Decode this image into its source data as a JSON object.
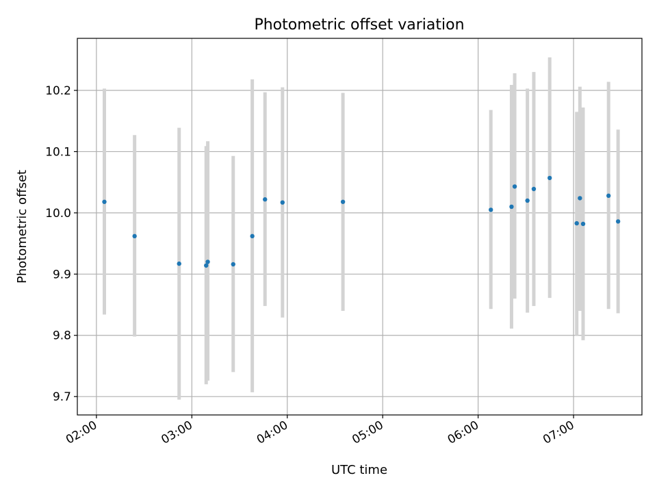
{
  "chart_data": {
    "type": "scatter",
    "title": "Photometric offset variation",
    "xlabel": "UTC time",
    "ylabel": "Photometric offset",
    "xlim": [
      "01:48",
      "07:43"
    ],
    "ylim": [
      9.67,
      10.285
    ],
    "grid": true,
    "x_ticks": [
      "02:00",
      "03:00",
      "04:00",
      "05:00",
      "06:00",
      "07:00"
    ],
    "y_ticks": [
      9.7,
      9.8,
      9.9,
      10.0,
      10.1,
      10.2
    ],
    "y_tick_labels": [
      "9.7",
      "9.8",
      "9.9",
      "10.0",
      "10.1",
      "10.2"
    ],
    "point_color": "#1f77b4",
    "errorbar_color": "#d3d3d3",
    "series": [
      {
        "x": [
          "02:05",
          "02:24",
          "02:52",
          "03:09",
          "03:10",
          "03:26",
          "03:38",
          "03:46",
          "03:57",
          "04:35",
          "06:08",
          "06:21",
          "06:23",
          "06:31",
          "06:35",
          "06:45",
          "07:02",
          "07:04",
          "07:06",
          "07:22",
          "07:28"
        ],
        "y": [
          10.018,
          9.962,
          9.917,
          9.914,
          9.92,
          9.916,
          9.962,
          10.022,
          10.017,
          10.018,
          10.005,
          10.01,
          10.043,
          10.02,
          10.039,
          10.057,
          9.983,
          10.024,
          9.982,
          10.028,
          9.986
        ],
        "yerr_low": [
          9.834,
          9.798,
          9.695,
          9.72,
          9.726,
          9.74,
          9.707,
          9.848,
          9.829,
          9.84,
          9.843,
          9.811,
          9.86,
          9.837,
          9.848,
          9.861,
          9.8,
          9.84,
          9.792,
          9.843,
          9.836
        ],
        "yerr_high": [
          10.203,
          10.127,
          10.139,
          10.109,
          10.117,
          10.093,
          10.218,
          10.197,
          10.205,
          10.196,
          10.168,
          10.209,
          10.228,
          10.203,
          10.23,
          10.254,
          10.165,
          10.206,
          10.172,
          10.214,
          10.136
        ]
      }
    ]
  }
}
